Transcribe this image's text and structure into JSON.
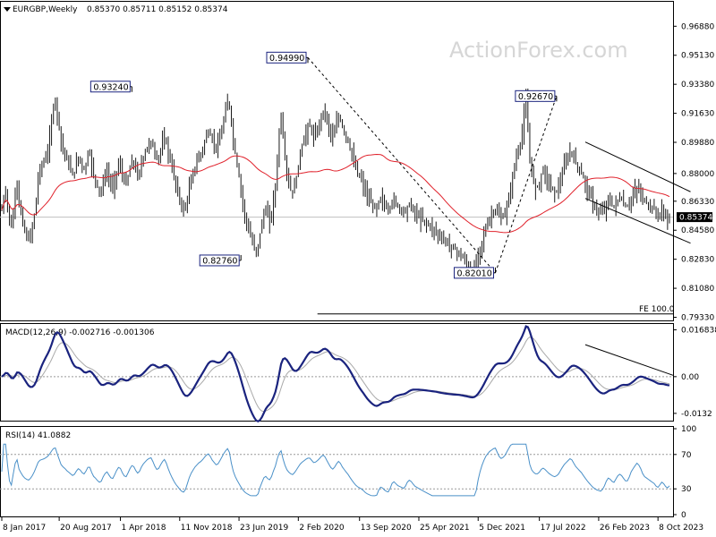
{
  "header": {
    "symbol": "EURGBP,Weekly",
    "ohlc": "0.85370 0.85711 0.85152 0.85374"
  },
  "watermark": "ActionForex.com",
  "colors": {
    "price": "#1a1a1a",
    "sma": "#e0202a",
    "macd": "#1a237e",
    "signal": "#a9a9a9",
    "rsi": "#4a90c8",
    "label_border": "#1a237e",
    "current_price_box": "#000000"
  },
  "chart_data": [
    {
      "type": "line",
      "panel": "price",
      "ylim": [
        0.7925,
        0.983
      ],
      "y_ticks": [
        "0.96880",
        "0.95130",
        "0.93380",
        "0.91630",
        "0.89880",
        "0.88000",
        "0.86330",
        "0.84580",
        "0.82830",
        "0.81080",
        "0.79330"
      ],
      "y_tick_values": [
        0.9688,
        0.9513,
        0.9338,
        0.9163,
        0.8988,
        0.88,
        0.8633,
        0.8458,
        0.8283,
        0.8108,
        0.7933
      ],
      "x_ticks": [
        "8 Jan 2017",
        "20 Aug 2017",
        "1 Apr 2018",
        "11 Nov 2018",
        "23 Jun 2019",
        "2 Feb 2020",
        "13 Sep 2020",
        "25 Apr 2021",
        "5 Dec 2021",
        "17 Jul 2022",
        "26 Feb 2023",
        "8 Oct 2023"
      ],
      "x_tick_pos": [
        0,
        30,
        62,
        93,
        124,
        155,
        187,
        218,
        249,
        281,
        312,
        343
      ],
      "n_weeks": 366,
      "close": [
        0.858,
        0.865,
        0.869,
        0.861,
        0.852,
        0.848,
        0.856,
        0.868,
        0.874,
        0.862,
        0.856,
        0.85,
        0.845,
        0.842,
        0.84,
        0.843,
        0.848,
        0.855,
        0.865,
        0.877,
        0.883,
        0.885,
        0.887,
        0.89,
        0.894,
        0.901,
        0.911,
        0.921,
        0.924,
        0.916,
        0.908,
        0.899,
        0.895,
        0.892,
        0.888,
        0.885,
        0.882,
        0.879,
        0.881,
        0.886,
        0.89,
        0.888,
        0.884,
        0.882,
        0.886,
        0.892,
        0.892,
        0.885,
        0.879,
        0.876,
        0.872,
        0.869,
        0.87,
        0.875,
        0.879,
        0.881,
        0.877,
        0.873,
        0.872,
        0.876,
        0.881,
        0.885,
        0.884,
        0.879,
        0.875,
        0.874,
        0.878,
        0.883,
        0.887,
        0.886,
        0.882,
        0.879,
        0.881,
        0.886,
        0.89,
        0.893,
        0.896,
        0.898,
        0.899,
        0.896,
        0.892,
        0.889,
        0.89,
        0.894,
        0.898,
        0.901,
        0.898,
        0.893,
        0.888,
        0.883,
        0.878,
        0.873,
        0.869,
        0.864,
        0.86,
        0.858,
        0.86,
        0.865,
        0.871,
        0.876,
        0.88,
        0.884,
        0.887,
        0.89,
        0.892,
        0.895,
        0.899,
        0.903,
        0.905,
        0.903,
        0.9,
        0.898,
        0.896,
        0.897,
        0.901,
        0.906,
        0.912,
        0.918,
        0.923,
        0.92,
        0.91,
        0.9,
        0.892,
        0.885,
        0.878,
        0.87,
        0.862,
        0.855,
        0.85,
        0.846,
        0.842,
        0.838,
        0.835,
        0.833,
        0.837,
        0.844,
        0.85,
        0.856,
        0.858,
        0.854,
        0.852,
        0.856,
        0.864,
        0.872,
        0.888,
        0.905,
        0.915,
        0.902,
        0.89,
        0.88,
        0.874,
        0.87,
        0.868,
        0.872,
        0.878,
        0.885,
        0.892,
        0.897,
        0.901,
        0.905,
        0.908,
        0.908,
        0.905,
        0.902,
        0.903,
        0.906,
        0.91,
        0.915,
        0.918,
        0.916,
        0.912,
        0.908,
        0.904,
        0.902,
        0.905,
        0.91,
        0.914,
        0.912,
        0.908,
        0.905,
        0.902,
        0.899,
        0.895,
        0.891,
        0.887,
        0.883,
        0.88,
        0.878,
        0.876,
        0.873,
        0.869,
        0.866,
        0.864,
        0.862,
        0.86,
        0.859,
        0.86,
        0.863,
        0.865,
        0.864,
        0.861,
        0.859,
        0.858,
        0.86,
        0.863,
        0.864,
        0.862,
        0.86,
        0.859,
        0.858,
        0.857,
        0.858,
        0.86,
        0.861,
        0.86,
        0.858,
        0.856,
        0.855,
        0.854,
        0.853,
        0.852,
        0.851,
        0.85,
        0.849,
        0.848,
        0.847,
        0.846,
        0.845,
        0.843,
        0.842,
        0.841,
        0.84,
        0.839,
        0.838,
        0.837,
        0.836,
        0.835,
        0.834,
        0.833,
        0.832,
        0.83,
        0.829,
        0.827,
        0.826,
        0.824,
        0.823,
        0.822,
        0.824,
        0.827,
        0.831,
        0.835,
        0.839,
        0.843,
        0.847,
        0.85,
        0.853,
        0.855,
        0.857,
        0.858,
        0.856,
        0.854,
        0.853,
        0.854,
        0.856,
        0.86,
        0.865,
        0.871,
        0.878,
        0.885,
        0.89,
        0.894,
        0.898,
        0.905,
        0.915,
        0.925,
        0.905,
        0.89,
        0.88,
        0.875,
        0.872,
        0.872,
        0.875,
        0.88,
        0.882,
        0.88,
        0.877,
        0.874,
        0.872,
        0.87,
        0.869,
        0.87,
        0.872,
        0.876,
        0.88,
        0.884,
        0.887,
        0.89,
        0.893,
        0.892,
        0.889,
        0.886,
        0.884,
        0.882,
        0.88,
        0.877,
        0.874,
        0.871,
        0.868,
        0.865,
        0.862,
        0.86,
        0.858,
        0.857,
        0.856,
        0.857,
        0.859,
        0.862,
        0.864,
        0.863,
        0.861,
        0.86,
        0.862,
        0.864,
        0.865,
        0.864,
        0.862,
        0.86,
        0.86,
        0.862,
        0.865,
        0.867,
        0.869,
        0.871,
        0.87,
        0.868,
        0.865,
        0.863,
        0.862,
        0.861,
        0.86,
        0.859,
        0.858,
        0.856,
        0.855,
        0.856,
        0.857,
        0.856,
        0.854,
        0.853,
        0.8537
      ],
      "sma_period": 55,
      "current_price": "0.85374",
      "price_labels": [
        {
          "text": "0.93240",
          "week": 68,
          "value": 0.9324
        },
        {
          "text": "0.94990",
          "week": 160,
          "value": 0.9499
        },
        {
          "text": "0.92670",
          "week": 290,
          "value": 0.9267
        },
        {
          "text": "0.82760",
          "week": 125,
          "value": 0.8276
        },
        {
          "text": "0.82010",
          "week": 258,
          "value": 0.8201
        }
      ],
      "dashed_lines": [
        {
          "from": {
            "week": 160,
            "value": 0.9499
          },
          "to": {
            "week": 258,
            "value": 0.8201
          }
        },
        {
          "from": {
            "week": 258,
            "value": 0.8201
          },
          "to": {
            "week": 290,
            "value": 0.9267
          }
        }
      ],
      "channel": [
        {
          "from": {
            "week": 305,
            "value": 0.899
          },
          "to": {
            "week": 360,
            "value": 0.869
          }
        },
        {
          "from": {
            "week": 305,
            "value": 0.865
          },
          "to": {
            "week": 360,
            "value": 0.838
          }
        }
      ],
      "fe_label": "FE 100.0",
      "fe_level": 0.7975,
      "fe_start_week": 165
    },
    {
      "type": "line",
      "panel": "macd",
      "title": "MACD(12,26,9) -0.002716 -0.001306",
      "y_ticks": [
        "0.016838",
        "0.00",
        "-0.0132"
      ],
      "y_tick_values": [
        0.016838,
        0.0,
        -0.0132
      ],
      "ylim": [
        -0.0155,
        0.0183
      ],
      "trendline": {
        "from": {
          "week": 305,
          "value": 0.0115
        },
        "to": {
          "week": 366,
          "value": 0.0005
        }
      }
    },
    {
      "type": "line",
      "panel": "rsi",
      "title": "RSI(14) 41.0882",
      "y_ticks": [
        "100",
        "70",
        "30",
        "0"
      ],
      "y_tick_values": [
        100,
        70,
        30,
        0
      ],
      "levels": [
        70,
        30
      ],
      "ylim": [
        0,
        100
      ]
    }
  ]
}
